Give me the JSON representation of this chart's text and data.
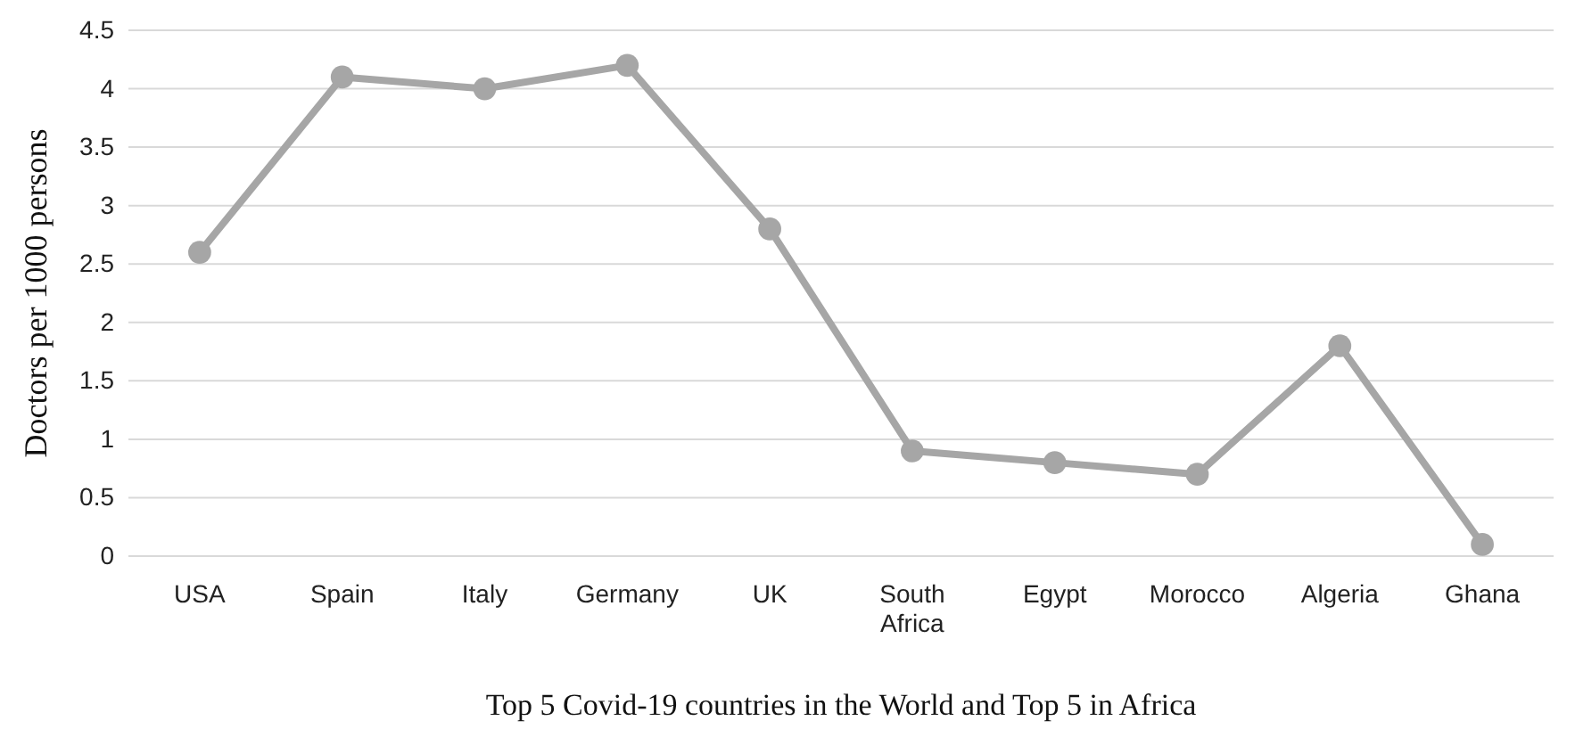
{
  "chart_data": {
    "type": "line",
    "xlabel": "Top 5 Covid-19 countries in the World and Top 5 in Africa",
    "ylabel": "Doctors per 1000 persons",
    "categories": [
      "USA",
      "Spain",
      "Italy",
      "Germany",
      "UK",
      "South Africa",
      "Egypt",
      "Morocco",
      "Algeria",
      "Ghana"
    ],
    "series": [
      {
        "color": "#a6a6a6",
        "values": [
          2.6,
          4.1,
          4.0,
          4.2,
          2.8,
          0.9,
          0.8,
          0.7,
          1.8,
          0.1
        ]
      }
    ],
    "ylim": [
      0,
      4.5
    ],
    "yticks": [
      0,
      0.5,
      1,
      1.5,
      2,
      2.5,
      3,
      3.5,
      4,
      4.5
    ],
    "grid": "y",
    "marker": "circle",
    "line_style": "solid"
  }
}
